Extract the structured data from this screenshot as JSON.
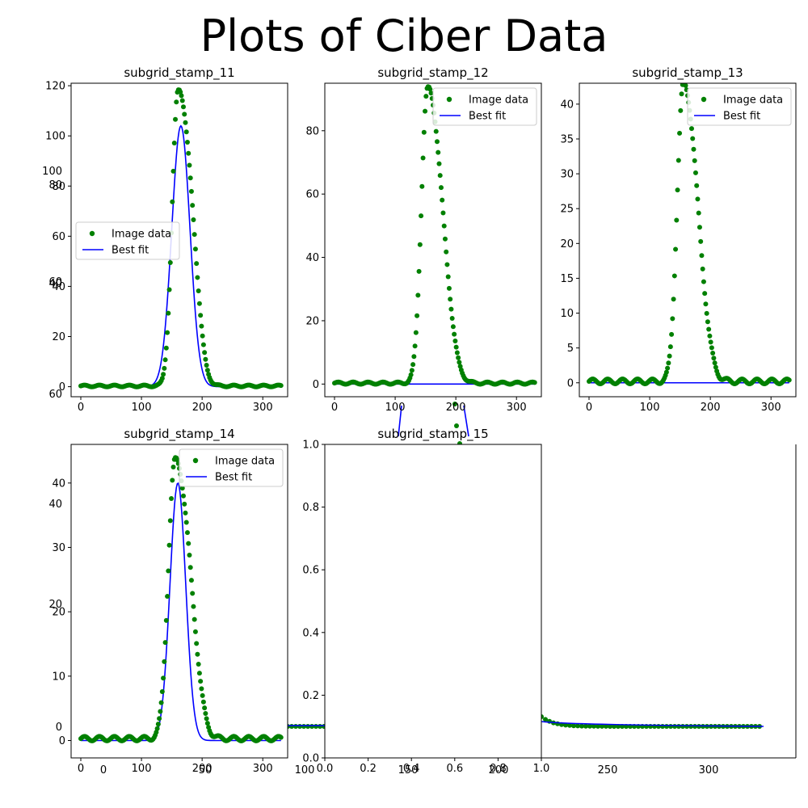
{
  "figure": {
    "title": "Plots of Ciber Data"
  },
  "colors": {
    "data_points": "#008000",
    "fit_line": "#0000ff",
    "axes": "#000000",
    "background": "#ffffff"
  },
  "legend_labels": {
    "data": "Image data",
    "fit": "Best fit"
  },
  "chart_data": [
    {
      "id": "p11",
      "type": "scatter",
      "title": "subgrid_stamp_11",
      "xlim": [
        -16,
        341
      ],
      "ylim": [
        -4,
        121
      ],
      "xticks": [
        0,
        100,
        200,
        300
      ],
      "yticks": [
        0,
        20,
        40,
        60,
        80,
        100,
        120
      ],
      "legend_loc": "center-left",
      "data_shape": {
        "amp": 115,
        "center": 160,
        "sigma_left": 9.5,
        "sigma_right": 18,
        "shoulder_amp": 25,
        "shoulder_center": 185,
        "shoulder_sigma": 12,
        "baseline": 0.3
      },
      "fit_shape": {
        "amp": 104,
        "center": 165,
        "sigma": 15
      },
      "series": [
        {
          "name": "Image data",
          "style": "points",
          "x_range": [
            0,
            330
          ],
          "n_points": 200
        },
        {
          "name": "Best fit",
          "style": "line",
          "x_range": [
            0,
            330
          ]
        }
      ]
    },
    {
      "id": "p12",
      "type": "scatter",
      "title": "subgrid_stamp_12",
      "xlim": [
        -16,
        341
      ],
      "ylim": [
        -4,
        95
      ],
      "xticks": [
        0,
        100,
        200,
        300
      ],
      "yticks": [
        0,
        20,
        40,
        60,
        80
      ],
      "legend_loc": "upper-right",
      "data_shape": {
        "amp": 90,
        "center": 153,
        "sigma_left": 10,
        "sigma_right": 20,
        "shoulder_amp": 15,
        "shoulder_center": 180,
        "shoulder_sigma": 15,
        "baseline": 0.3
      },
      "fit_shape": {
        "amp": 0,
        "center": 165,
        "sigma": 15
      },
      "series": [
        {
          "name": "Image data",
          "style": "points",
          "x_range": [
            0,
            330
          ],
          "n_points": 200
        },
        {
          "name": "Best fit",
          "style": "line",
          "x_range": [
            0,
            330
          ]
        }
      ]
    },
    {
      "id": "p13",
      "type": "scatter",
      "title": "subgrid_stamp_13",
      "xlim": [
        -16,
        341
      ],
      "ylim": [
        -2,
        43
      ],
      "xticks": [
        0,
        100,
        200,
        300
      ],
      "yticks": [
        0,
        5,
        10,
        15,
        20,
        25,
        30,
        35,
        40
      ],
      "legend_loc": "upper-right",
      "data_shape": {
        "amp": 41,
        "center": 155,
        "sigma_left": 10,
        "sigma_right": 20,
        "shoulder_amp": 6,
        "shoulder_center": 180,
        "shoulder_sigma": 15,
        "baseline": 0.2
      },
      "fit_shape": {
        "amp": 0,
        "center": 165,
        "sigma": 15
      },
      "series": [
        {
          "name": "Image data",
          "style": "points",
          "x_range": [
            0,
            330
          ],
          "n_points": 200
        },
        {
          "name": "Best fit",
          "style": "line",
          "x_range": [
            0,
            330
          ]
        }
      ]
    },
    {
      "id": "p14",
      "type": "scatter",
      "title": "subgrid_stamp_14",
      "xlim": [
        -16,
        341
      ],
      "ylim": [
        -2.7,
        46
      ],
      "xticks": [
        0,
        100,
        200,
        300
      ],
      "yticks": [
        0,
        10,
        20,
        30,
        40
      ],
      "legend_loc": "upper-right",
      "data_shape": {
        "amp": 42,
        "center": 155,
        "sigma_left": 11,
        "sigma_right": 20,
        "shoulder_amp": 8,
        "shoulder_center": 182,
        "shoulder_sigma": 14,
        "baseline": 0.3
      },
      "fit_shape": {
        "amp": 40,
        "center": 160,
        "sigma": 13
      },
      "series": [
        {
          "name": "Image data",
          "style": "points",
          "x_range": [
            0,
            330
          ],
          "n_points": 200
        },
        {
          "name": "Best fit",
          "style": "line",
          "x_range": [
            0,
            330
          ]
        }
      ]
    },
    {
      "id": "p15",
      "type": "scatter",
      "title": "subgrid_stamp_15",
      "xlim": [
        0.0,
        1.0
      ],
      "ylim": [
        0.0,
        1.0
      ],
      "xticks": [
        0.0,
        0.2,
        0.4,
        0.6,
        0.8,
        1.0
      ],
      "yticks": [
        0.0,
        0.2,
        0.4,
        0.6,
        0.8,
        1.0
      ],
      "tick_labels_x": [
        "0.0",
        "0.2",
        "0.4",
        "0.6",
        "0.8",
        "1.0"
      ],
      "tick_labels_y": [
        "0.0",
        "0.2",
        "0.4",
        "0.6",
        "0.8",
        "1.0"
      ],
      "series": []
    }
  ],
  "stray_tick_labels": [
    "100",
    "80",
    "60",
    "40",
    "20",
    "0",
    "0",
    "0",
    "50",
    "100",
    "150",
    "200",
    "250",
    "300",
    "250",
    "300",
    "60",
    "80",
    "100",
    "20",
    "40",
    "30",
    "0"
  ]
}
